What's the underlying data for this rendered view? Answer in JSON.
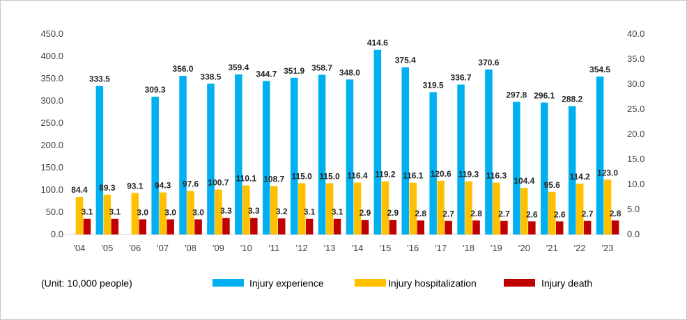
{
  "chart_data": {
    "type": "bar",
    "note": "(Unit: 10,000 people)",
    "categories": [
      "'04",
      "'05",
      "'06",
      "'07",
      "'08",
      "'09",
      "'10",
      "'11",
      "'12",
      "'13",
      "'14",
      "'15",
      "'16",
      "'17",
      "'18",
      "'19",
      "'20",
      "'21",
      "'22",
      "'23"
    ],
    "series": [
      {
        "name": "Injury experience",
        "axis": "left",
        "color": "#00B0F0",
        "values": [
          null,
          333.5,
          null,
          309.3,
          356.0,
          338.5,
          359.4,
          344.7,
          351.9,
          358.7,
          348.0,
          414.6,
          375.4,
          319.5,
          336.7,
          370.6,
          297.8,
          296.1,
          288.2,
          354.5
        ]
      },
      {
        "name": "Injury hospitalization",
        "axis": "left",
        "color": "#FFC000",
        "values": [
          84.4,
          89.3,
          93.1,
          94.3,
          97.6,
          100.7,
          110.1,
          108.7,
          115.0,
          115.0,
          116.4,
          119.2,
          116.1,
          120.6,
          119.3,
          116.3,
          104.4,
          95.6,
          114.2,
          123.0
        ]
      },
      {
        "name": "Injury death",
        "axis": "right",
        "color": "#C00000",
        "values": [
          3.1,
          3.1,
          3.0,
          3.0,
          3.0,
          3.3,
          3.3,
          3.2,
          3.1,
          3.1,
          2.9,
          2.9,
          2.8,
          2.7,
          2.8,
          2.7,
          2.6,
          2.6,
          2.7,
          2.8
        ]
      }
    ],
    "y_left": {
      "ylim": [
        0,
        450
      ],
      "ticks": [
        "0.0",
        "50.0",
        "100.0",
        "150.0",
        "200.0",
        "250.0",
        "300.0",
        "350.0",
        "400.0",
        "450.0"
      ]
    },
    "y_right": {
      "ylim": [
        0,
        40
      ],
      "ticks": [
        "0.0",
        "5.0",
        "10.0",
        "15.0",
        "20.0",
        "25.0",
        "30.0",
        "35.0",
        "40.0"
      ]
    },
    "grid": false,
    "legend_position": "bottom"
  }
}
